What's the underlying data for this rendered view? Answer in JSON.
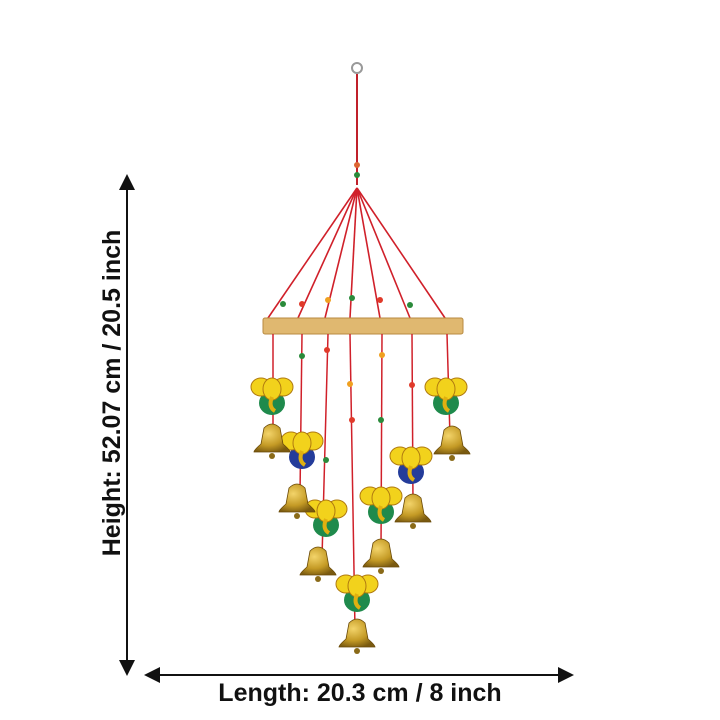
{
  "dimensions": {
    "height_label": "Height: 52.07 cm / 20.5 inch",
    "length_label": "Length: 20.3 cm / 8 inch"
  },
  "colors": {
    "string": "#d0202a",
    "bar": "#e0b870",
    "bell": "#c9a12a",
    "ganesha_yellow": "#f2d21c",
    "ganesha_green": "#1f8a4c",
    "ganesha_blue": "#243c9a"
  }
}
